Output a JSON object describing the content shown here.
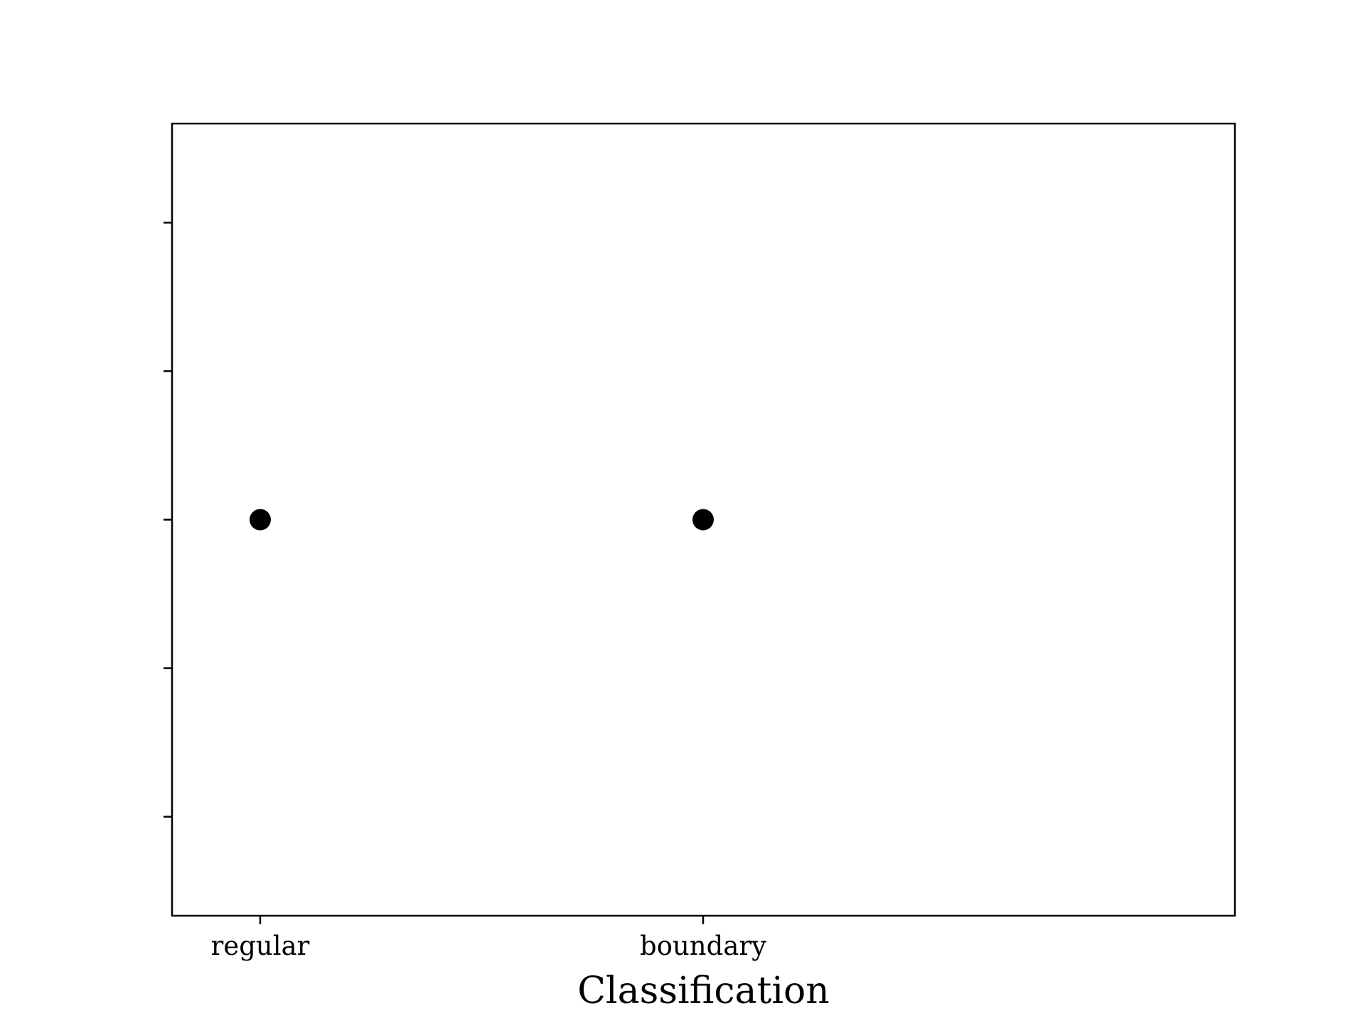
{
  "chart_data": {
    "type": "scatter",
    "title": "",
    "xlabel": "Classification",
    "ylabel": "",
    "categories": [
      "regular",
      "boundary"
    ],
    "x": [
      "regular",
      "boundary"
    ],
    "y": [
      0,
      0
    ],
    "ylim": [
      -2,
      2
    ],
    "yticks": [
      -1.5,
      -0.75,
      0,
      0.75,
      1.5
    ],
    "show_ytick_labels": false,
    "grid": false,
    "legend": "none",
    "marker_color": "#000000"
  }
}
